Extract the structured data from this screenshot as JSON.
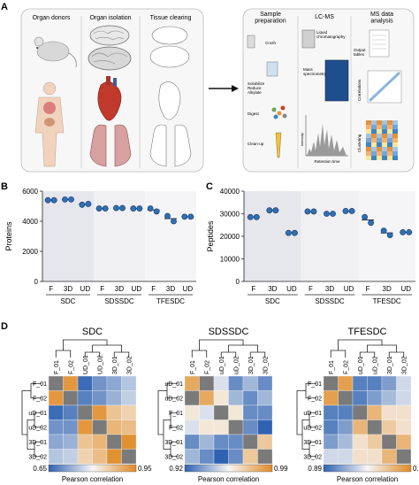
{
  "panels": {
    "A": "A",
    "B": "B",
    "C": "C",
    "D": "D"
  },
  "panelA": {
    "left_titles": [
      "Organ donors",
      "Organ isolation",
      "Tissue clearing"
    ],
    "right_titles": [
      "Sample\npreparation",
      "LC-MS",
      "MS data\nanalysis"
    ],
    "prep_steps": [
      "Crush",
      "Solubilize\nReduce\nAlkylate",
      "Digest",
      "Clean-up"
    ],
    "lcms_labels": [
      "Liquid\nchromatography",
      "Mass\nspectrometry",
      "Intensity",
      "Retention time"
    ],
    "analysis_labels": [
      "Output\ntables",
      "Correlations",
      "Clustering"
    ]
  },
  "chart_data": [
    {
      "type": "scatter",
      "panel": "B",
      "ylabel": "Proteins",
      "ylim": [
        0,
        6000
      ],
      "yticks": [
        0,
        2000,
        4000,
        6000
      ],
      "categories": [
        "F",
        "3D",
        "UD",
        "F",
        "3D",
        "UD",
        "F",
        "3D",
        "UD"
      ],
      "groups": [
        "SDC",
        "SDSSDC",
        "TFESDC"
      ],
      "points": [
        [
          5400,
          5400
        ],
        [
          5450,
          5450
        ],
        [
          5100,
          5150
        ],
        [
          4850,
          4850
        ],
        [
          4880,
          4880
        ],
        [
          4850,
          4850
        ],
        [
          4850,
          4650
        ],
        [
          4350,
          4000
        ],
        [
          4300,
          4300
        ]
      ],
      "means": [
        5400,
        5450,
        5125,
        4850,
        4880,
        4850,
        4750,
        4175,
        4300
      ]
    },
    {
      "type": "scatter",
      "panel": "C",
      "ylabel": "Peptides",
      "ylim": [
        0,
        40000
      ],
      "yticks": [
        0,
        10000,
        20000,
        30000,
        40000
      ],
      "categories": [
        "F",
        "3D",
        "UD",
        "F",
        "3D",
        "UD",
        "F",
        "3D",
        "UD"
      ],
      "groups": [
        "SDC",
        "SDSSDC",
        "TFESDC"
      ],
      "points": [
        [
          28500,
          28500
        ],
        [
          31500,
          31500
        ],
        [
          21500,
          21500
        ],
        [
          31000,
          31000
        ],
        [
          30000,
          30000
        ],
        [
          31200,
          31200
        ],
        [
          28500,
          26000
        ],
        [
          22500,
          20500
        ],
        [
          21800,
          21800
        ]
      ],
      "means": [
        28500,
        31500,
        21500,
        31000,
        30000,
        31200,
        27250,
        21500,
        21800
      ]
    },
    {
      "type": "heatmap",
      "panel": "D",
      "title": "SDC",
      "labels": [
        "F_01",
        "F_02",
        "UD_01",
        "UD_02",
        "3D_01",
        "3D_02"
      ],
      "col_labels": [
        "F_01",
        "F_02",
        "UD_01",
        "UD_02",
        "3D_01",
        "3D_02"
      ],
      "row_labels": [
        "F_01",
        "F_02",
        "uD_01",
        "uD_02",
        "3D_01",
        "3D_02"
      ],
      "colorbar": {
        "min": "0.65",
        "max": "0.95",
        "label": "Pearson correlation"
      },
      "range": [
        0.65,
        0.95
      ],
      "matrix": [
        [
          null,
          0.93,
          0.66,
          0.7,
          0.72,
          0.75
        ],
        [
          0.93,
          null,
          0.68,
          0.7,
          0.73,
          0.76
        ],
        [
          0.66,
          0.68,
          null,
          0.93,
          0.87,
          0.85
        ],
        [
          0.7,
          0.7,
          0.93,
          null,
          0.89,
          0.88
        ],
        [
          0.72,
          0.73,
          0.87,
          0.89,
          null,
          0.94
        ],
        [
          0.75,
          0.76,
          0.85,
          0.88,
          0.94,
          null
        ]
      ]
    },
    {
      "type": "heatmap",
      "panel": "D",
      "title": "SDSSDC",
      "labels": [
        "F_01",
        "F_02",
        "uD_01",
        "F_02",
        "3D_01",
        "3D_02"
      ],
      "col_labels": [
        "F_01",
        "F_02",
        "uD_01",
        "uD_02",
        "3D_01",
        "3D_02"
      ],
      "row_labels": [
        "uD_01",
        "uD_02",
        "F_01",
        "F_02",
        "3D_01",
        "3D_02"
      ],
      "colorbar": {
        "min": "0.92",
        "max": "0.99",
        "label": "Pearson correlation"
      },
      "range": [
        0.92,
        0.99
      ],
      "matrix": [
        [
          0.98,
          null,
          0.95,
          0.93,
          0.94,
          0.93
        ],
        [
          null,
          0.98,
          0.96,
          0.94,
          0.93,
          0.94
        ],
        [
          0.96,
          0.95,
          null,
          0.96,
          0.93,
          0.93
        ],
        [
          0.95,
          0.96,
          0.96,
          null,
          0.93,
          0.92
        ],
        [
          0.93,
          0.94,
          0.93,
          0.93,
          null,
          0.97
        ],
        [
          0.94,
          0.93,
          0.92,
          0.93,
          0.97,
          null
        ]
      ]
    },
    {
      "type": "heatmap",
      "panel": "D",
      "title": "TFESDC",
      "labels": [
        "F_01",
        "F_02",
        "uD_01",
        "uD_02",
        "3D_01",
        "3D_02"
      ],
      "col_labels": [
        "F_01",
        "F_02",
        "uD_01",
        "uD_02",
        "3D_01",
        "3D_02"
      ],
      "row_labels": [
        "F_01",
        "F_02",
        "uD_01",
        "uD_02",
        "3D_01",
        "3D_02"
      ],
      "colorbar": {
        "min": "0.89",
        "max": "0.99",
        "label": "Pearson correlation"
      },
      "range": [
        0.89,
        0.99
      ],
      "matrix": [
        [
          null,
          0.98,
          0.9,
          0.9,
          0.91,
          0.93
        ],
        [
          0.98,
          null,
          0.9,
          0.91,
          0.92,
          0.93
        ],
        [
          0.9,
          0.9,
          null,
          0.97,
          0.95,
          0.95
        ],
        [
          0.9,
          0.91,
          0.97,
          null,
          0.96,
          0.95
        ],
        [
          0.91,
          0.92,
          0.95,
          0.96,
          null,
          0.97
        ],
        [
          0.93,
          0.93,
          0.95,
          0.95,
          0.97,
          null
        ]
      ]
    }
  ],
  "colors": {
    "dot": "#2f6fb5",
    "dot_edge": "#163a66",
    "shade_dark": "#e7e8ef",
    "shade_light": "#f3f3f6",
    "heat_low": "#2f62b0",
    "heat_mid": "#f6f6f6",
    "heat_high": "#e08a24",
    "diag": "#7a7a7a"
  }
}
